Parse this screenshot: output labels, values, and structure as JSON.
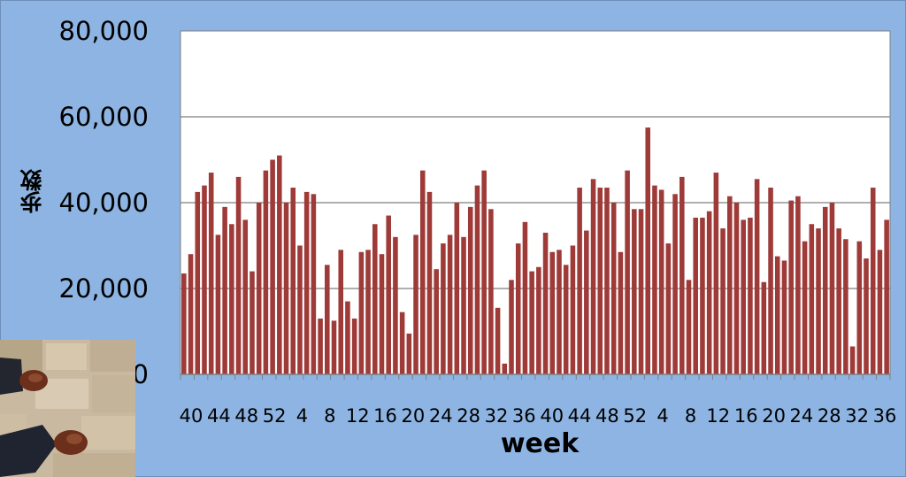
{
  "chart_data": {
    "type": "bar",
    "title": "",
    "xlabel": "week",
    "ylabel": "歩数",
    "ylim": [
      0,
      80000
    ],
    "yticks": [
      "0",
      "20,000",
      "40,000",
      "60,000",
      "80,000"
    ],
    "grid": true,
    "legend": "none",
    "colors": {
      "bar": "#9e3a38",
      "plot_bg": "#ffffff",
      "page_bg": "#8db4e2",
      "grid": "#7f7f7f"
    },
    "x_tick_labels": [
      "40",
      "44",
      "48",
      "52",
      "4",
      "8",
      "12",
      "16",
      "20",
      "24",
      "28",
      "32",
      "36",
      "40",
      "44",
      "48",
      "52",
      "4",
      "8",
      "12",
      "16",
      "20",
      "24",
      "28",
      "32",
      "36"
    ],
    "values": [
      23500,
      28000,
      42500,
      44000,
      47000,
      32500,
      39000,
      35000,
      46000,
      36000,
      24000,
      40000,
      47500,
      50000,
      51000,
      40000,
      43500,
      30000,
      42500,
      42000,
      13000,
      25500,
      12500,
      29000,
      17000,
      13000,
      28500,
      29000,
      35000,
      28000,
      37000,
      32000,
      14500,
      9500,
      32500,
      47500,
      42500,
      24500,
      30500,
      32500,
      40000,
      32000,
      39000,
      44000,
      47500,
      38500,
      15500,
      2500,
      22000,
      30500,
      35500,
      24000,
      25000,
      33000,
      28500,
      29000,
      25500,
      30000,
      43500,
      33500,
      45500,
      43500,
      43500,
      40000,
      28500,
      47500,
      38500,
      38500,
      57500,
      44000,
      43000,
      30500,
      42000,
      46000,
      22000,
      36500,
      36500,
      38000,
      47000,
      34000,
      41500,
      40000,
      36000,
      36500,
      45500,
      21500,
      43500,
      27500,
      26500,
      40500,
      41500,
      31000,
      35000,
      34000,
      39000,
      40000,
      34000,
      31500,
      6500,
      31000,
      27000,
      43500,
      29000,
      36000
    ]
  },
  "decor": {
    "photo": "shoes-on-cobblestone-photo"
  }
}
